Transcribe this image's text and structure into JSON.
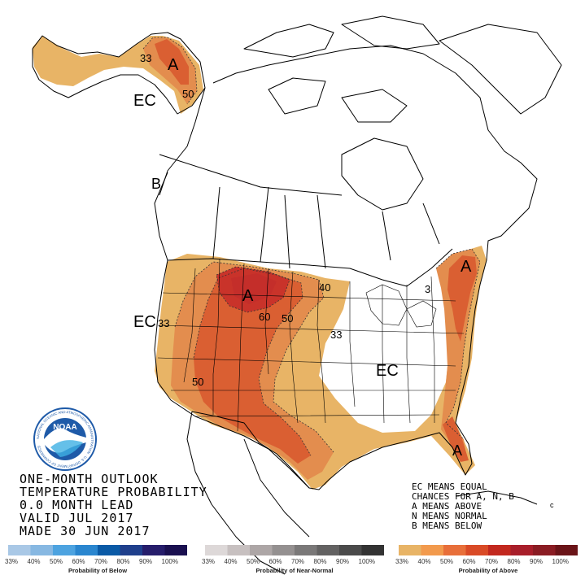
{
  "title_block": {
    "line1": "ONE-MONTH OUTLOOK",
    "line2": "TEMPERATURE PROBABILITY",
    "line3": "0.0 MONTH LEAD",
    "line4": "VALID JUL 2017",
    "line5": "MADE 30 JUN 2017"
  },
  "legend_text": {
    "line1": "EC MEANS EQUAL",
    "line2": "CHANCES FOR A, N, B",
    "line3": "A MEANS ABOVE",
    "line4": "N MEANS NORMAL",
    "line5": "B MEANS BELOW"
  },
  "map_labels": {
    "ec_alaska": "EC",
    "ec_west": "EC",
    "ec_central": "EC",
    "a_alaska": "A",
    "a_plains": "A",
    "a_northeast": "A",
    "a_florida": "A",
    "b_label": "B",
    "c_mark": "c"
  },
  "contour_labels": {
    "alaska_33": "33",
    "alaska_50": "50",
    "west_33": "33",
    "west_50": "50",
    "plains_60": "60",
    "plains_50": "50",
    "plains_40": "40",
    "central_33": "33",
    "ne_3": "3"
  },
  "logo": {
    "name": "NOAA",
    "ring_text": "NATIONAL OCEANIC AND ATMOSPHERIC ADMINISTRATION · U.S. DEPARTMENT OF COMMERCE"
  },
  "colorbars": [
    {
      "caption": "Probability of Below",
      "ticks": [
        "33%",
        "40%",
        "50%",
        "60%",
        "70%",
        "80%",
        "90%",
        "100%"
      ],
      "colors": [
        "#a9c8e6",
        "#87b8e2",
        "#4da3e0",
        "#2a86cf",
        "#0a5aa6",
        "#1f3f8c",
        "#261d6b",
        "#1a1050"
      ]
    },
    {
      "caption": "Probability of Near-Normal",
      "ticks": [
        "33%",
        "40%",
        "50%",
        "60%",
        "70%",
        "80%",
        "90%",
        "100%"
      ],
      "colors": [
        "#ddd8d8",
        "#c7c0c0",
        "#ada6a6",
        "#949090",
        "#7a7878",
        "#636262",
        "#4a4a4a",
        "#333333"
      ]
    },
    {
      "caption": "Probability of Above",
      "ticks": [
        "33%",
        "40%",
        "50%",
        "60%",
        "70%",
        "80%",
        "90%",
        "100%"
      ],
      "colors": [
        "#e8b466",
        "#f29a4d",
        "#e86f3a",
        "#d94a26",
        "#c2281e",
        "#a81e2a",
        "#8a1c23",
        "#6a1418"
      ]
    }
  ],
  "colors": {
    "above_33": "#e8b466",
    "above_40": "#e38d4e",
    "above_50": "#da5f32",
    "above_60": "#c9332a",
    "above_70": "#b01f26",
    "noaa_blue": "#1e5aa8"
  }
}
